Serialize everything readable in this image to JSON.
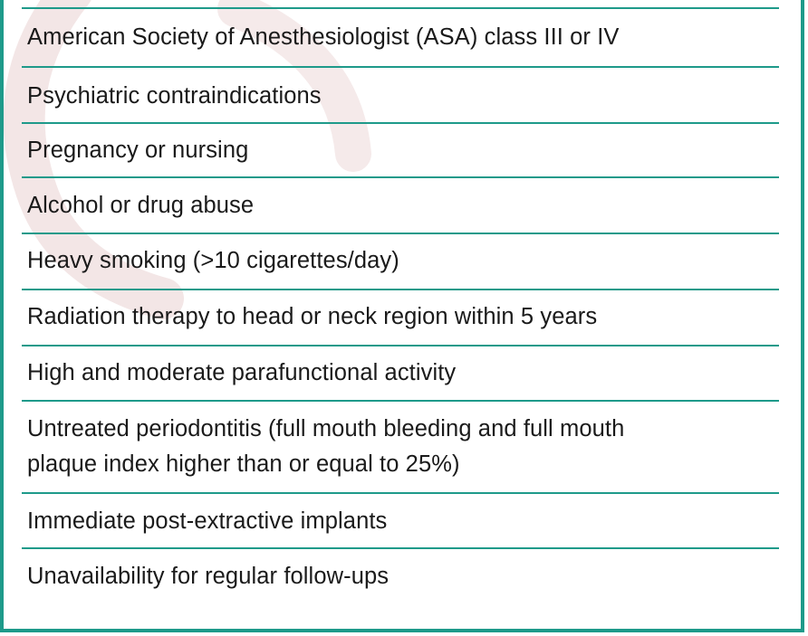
{
  "criteria": [
    "American Society of Anesthesiologist (ASA) class III or IV",
    "Psychiatric contraindications",
    "Pregnancy or nursing",
    "Alcohol or drug abuse",
    "Heavy smoking (>10 cigarettes/day)",
    "Radiation therapy to head or neck region within 5 years",
    "High and moderate parafunctional activity",
    "Untreated periodontitis (full mouth bleeding and full mouth",
    "plaque index higher than or equal to 25%)",
    "Immediate post-extractive implants",
    "Unavailability for regular follow-ups"
  ],
  "colors": {
    "border": "#1e9a8a",
    "text": "#1a1a1a",
    "watermark": "#f0e3e3"
  }
}
